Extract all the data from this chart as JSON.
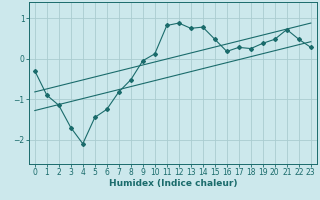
{
  "title": "",
  "xlabel": "Humidex (Indice chaleur)",
  "bg_color": "#cce8ec",
  "grid_color": "#aaccd0",
  "line_color": "#1a6b6b",
  "xlim": [
    -0.5,
    23.5
  ],
  "ylim": [
    -2.6,
    1.4
  ],
  "yticks": [
    1,
    0,
    -1,
    -2
  ],
  "xticks": [
    0,
    1,
    2,
    3,
    4,
    5,
    6,
    7,
    8,
    9,
    10,
    11,
    12,
    13,
    14,
    15,
    16,
    17,
    18,
    19,
    20,
    21,
    22,
    23
  ],
  "main_line_x": [
    0,
    1,
    2,
    3,
    4,
    5,
    6,
    7,
    8,
    9,
    10,
    11,
    12,
    13,
    14,
    15,
    16,
    17,
    18,
    19,
    20,
    21,
    22,
    23
  ],
  "main_line_y": [
    -0.3,
    -0.9,
    -1.15,
    -1.7,
    -2.1,
    -1.45,
    -1.25,
    -0.82,
    -0.52,
    -0.05,
    0.12,
    0.82,
    0.88,
    0.75,
    0.78,
    0.48,
    0.18,
    0.28,
    0.25,
    0.38,
    0.48,
    0.72,
    0.48,
    0.28
  ],
  "reg_line1_x": [
    0,
    23
  ],
  "reg_line1_y": [
    -1.28,
    0.42
  ],
  "reg_line2_x": [
    0,
    23
  ],
  "reg_line2_y": [
    -0.82,
    0.88
  ]
}
